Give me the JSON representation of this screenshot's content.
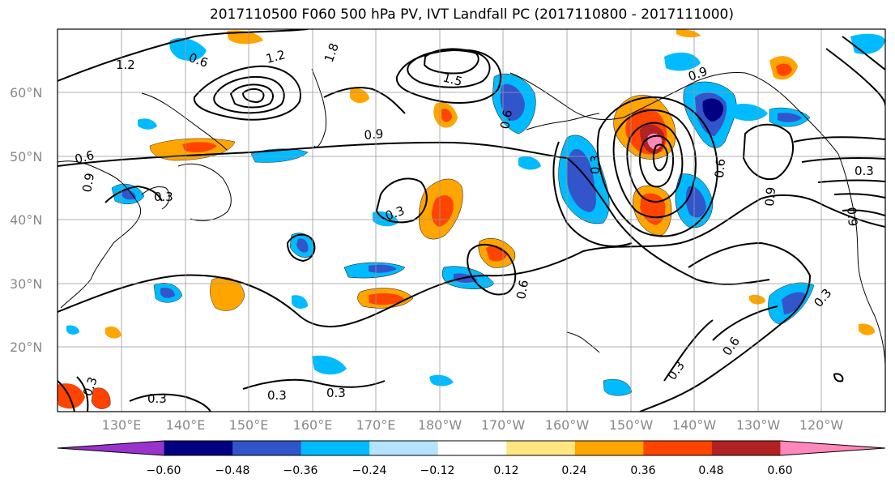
{
  "title": "2017110500 F060 500 hPa PV, IVT Landfall PC (2017110800 - 2017111000)",
  "map": {
    "lat_labels": [
      "60°N",
      "50°N",
      "40°N",
      "30°N",
      "20°N"
    ],
    "lon_labels": [
      "130°E",
      "140°E",
      "150°E",
      "160°E",
      "170°E",
      "180°W",
      "170°W",
      "160°W",
      "150°W",
      "140°W",
      "130°W",
      "120°W"
    ],
    "contour_labels": [
      "1.2",
      "1.2",
      "1.8",
      "1.5",
      "0.9",
      "0.9",
      "0.6",
      "0.9",
      "0.3",
      "0.3",
      "0.6",
      "0.9",
      "0.3",
      "0.6",
      "0.6",
      "0.3",
      "0.3",
      "0.3",
      "0.3",
      "0.3",
      "0.6",
      "0.3",
      "0.6",
      "0.9",
      "0.3"
    ]
  },
  "colorbar": {
    "colors": [
      "#9933cc",
      "#000080",
      "#3355cc",
      "#00bbff",
      "#b3e3ff",
      "#ffffff",
      "#ffe680",
      "#ffa500",
      "#ff4400",
      "#b22222",
      "#ff88bb"
    ],
    "tick_labels": [
      "−0.60",
      "−0.48",
      "−0.36",
      "−0.24",
      "−0.12",
      "0.12",
      "0.24",
      "0.36",
      "0.48",
      "0.60"
    ]
  }
}
